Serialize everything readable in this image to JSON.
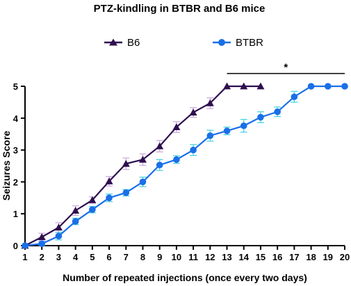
{
  "chart_data": {
    "type": "line",
    "title": "PTZ-kindling in BTBR and B6 mice",
    "xlabel": "Number of repeated injections (once every two days)",
    "ylabel": "Seizures Score",
    "xlim": [
      1,
      20
    ],
    "ylim": [
      0,
      5
    ],
    "x_ticks": [
      "1",
      "2",
      "3",
      "4",
      "5",
      "6",
      "7",
      "8",
      "9",
      "10",
      "11",
      "12",
      "13",
      "14",
      "15",
      "16",
      "17",
      "18",
      "19",
      "20"
    ],
    "y_ticks": [
      "0",
      "1",
      "2",
      "3",
      "4",
      "5"
    ],
    "grid": false,
    "legend_position": "top",
    "series": [
      {
        "name": "B6",
        "marker": "triangle",
        "color": "#2e0f4f",
        "error_color": "#c9a8de",
        "x": [
          1,
          2,
          3,
          4,
          5,
          6,
          7,
          8,
          9,
          10,
          11,
          12,
          13,
          14,
          15
        ],
        "values": [
          0,
          0.27,
          0.57,
          1.1,
          1.43,
          2.02,
          2.57,
          2.7,
          3.12,
          3.72,
          4.18,
          4.47,
          5,
          5,
          5
        ],
        "error": [
          0,
          0.12,
          0.15,
          0.15,
          0.1,
          0.15,
          0.18,
          0.18,
          0.18,
          0.17,
          0.15,
          0.17,
          0,
          0,
          0
        ]
      },
      {
        "name": "BTBR",
        "marker": "circle",
        "color": "#1a6fe8",
        "error_color": "#3fd0e0",
        "x": [
          1,
          2,
          3,
          4,
          5,
          6,
          7,
          8,
          9,
          10,
          11,
          12,
          13,
          14,
          15,
          16,
          17,
          18,
          19,
          20
        ],
        "values": [
          0,
          0.06,
          0.3,
          0.76,
          1.13,
          1.5,
          1.66,
          2.0,
          2.53,
          2.7,
          3.0,
          3.45,
          3.6,
          3.76,
          4.03,
          4.2,
          4.67,
          5,
          5,
          5
        ],
        "error": [
          0,
          0.05,
          0.12,
          0.1,
          0.1,
          0.12,
          0.1,
          0.15,
          0.17,
          0.12,
          0.17,
          0.17,
          0.12,
          0.2,
          0.17,
          0.15,
          0.17,
          0,
          0,
          0
        ]
      }
    ],
    "annotations": [
      {
        "text": "*",
        "x_start": 13,
        "x_end": 20,
        "y": 5.4
      }
    ]
  }
}
